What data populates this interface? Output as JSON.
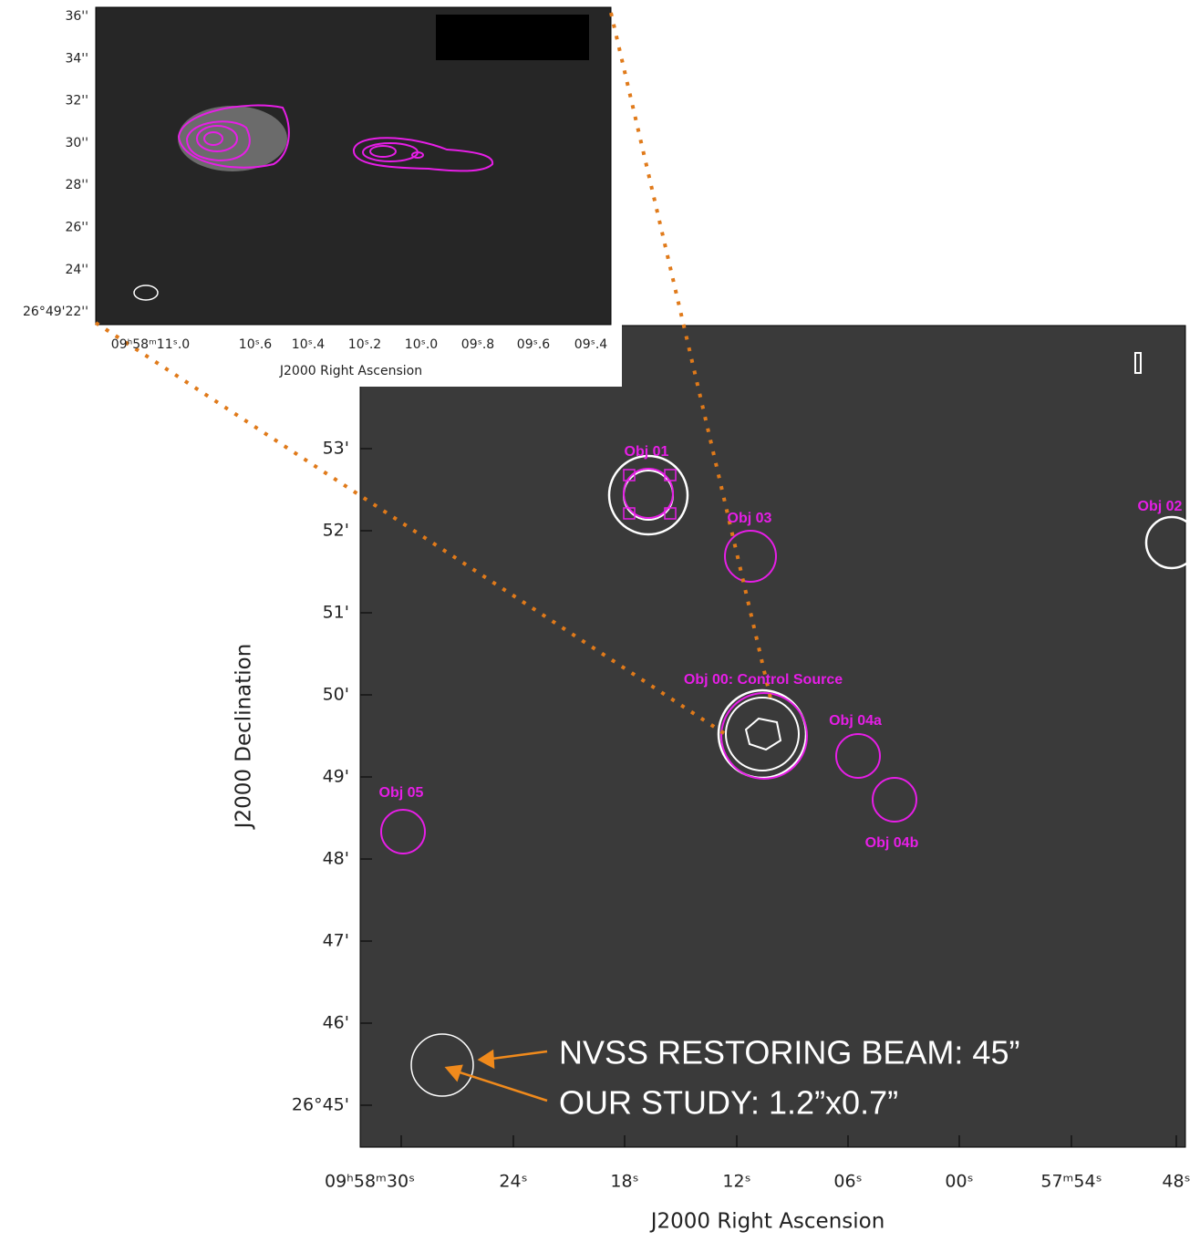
{
  "main_panel": {
    "y_axis_label": "J2000 Declination",
    "x_axis_label": "J2000 Right Ascension",
    "y_tick_labels": [
      "53'",
      "52'",
      "51'",
      "50'",
      "49'",
      "48'",
      "47'",
      "46'",
      "26°45'"
    ],
    "x_tick_labels": [
      "09ʰ58ᵐ30ˢ",
      "24ˢ",
      "18ˢ",
      "12ˢ",
      "06ˢ",
      "00ˢ",
      "57ᵐ54ˢ",
      "48ˢ"
    ],
    "objects": [
      "Obj 01",
      "Obj 03",
      "Obj 02",
      "Obj 00: Control Source",
      "Obj 04a",
      "Obj 04b",
      "Obj 05"
    ],
    "annotations": [
      "NVSS RESTORING BEAM: 45”",
      "OUR STUDY: 1.2”x0.7”"
    ]
  },
  "inset_panel": {
    "x_axis_label": "J2000 Right Ascension",
    "y_tick_labels": [
      "36''",
      "34''",
      "32''",
      "30''",
      "28''",
      "26''",
      "24''",
      "26°49'22''"
    ],
    "x_tick_labels": [
      "09ʰ58ᵐ11ˢ.0",
      "10ˢ.6",
      "10ˢ.4",
      "10ˢ.2",
      "10ˢ.0",
      "09ˢ.8",
      "09ˢ.6",
      "09ˢ.4"
    ]
  }
}
